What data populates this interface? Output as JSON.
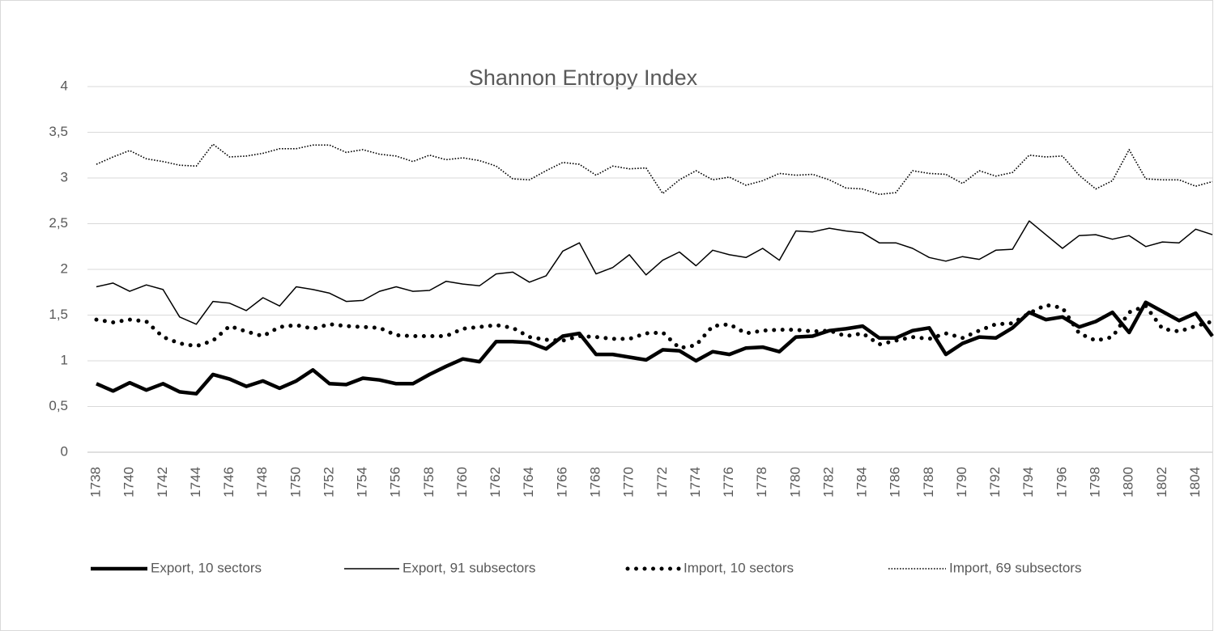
{
  "chart_data": {
    "type": "line",
    "title": "Shannon Entropy Index",
    "categories": [
      1738,
      null,
      1740,
      null,
      1742,
      null,
      1744,
      null,
      1746,
      null,
      1748,
      null,
      1750,
      null,
      1752,
      null,
      1754,
      null,
      1756,
      null,
      1758,
      null,
      1760,
      null,
      1762,
      null,
      1764,
      null,
      1766,
      null,
      1768,
      null,
      1770,
      null,
      1772,
      null,
      1774,
      null,
      1776,
      null,
      1778,
      null,
      1780,
      null,
      1782,
      null,
      1784,
      null,
      1786,
      null,
      1788,
      null,
      1790,
      null,
      1792,
      null,
      1794,
      null,
      1796,
      null,
      1798,
      null,
      1800,
      null,
      1802,
      null,
      1804,
      null
    ],
    "series": [
      {
        "name": "Export, 10 sectors",
        "color": "#000000",
        "width": 4.5,
        "dash": "solid",
        "values": [
          0.75,
          0.67,
          0.76,
          0.68,
          0.75,
          0.66,
          0.64,
          0.85,
          0.8,
          0.72,
          0.78,
          0.7,
          0.78,
          0.9,
          0.75,
          0.74,
          0.81,
          0.79,
          0.75,
          0.75,
          0.85,
          0.94,
          1.02,
          0.99,
          1.21,
          1.21,
          1.2,
          1.13,
          1.27,
          1.3,
          1.07,
          1.07,
          1.04,
          1.01,
          1.12,
          1.11,
          1.0,
          1.1,
          1.07,
          1.14,
          1.15,
          1.1,
          1.26,
          1.27,
          1.33,
          1.35,
          1.38,
          1.25,
          1.25,
          1.33,
          1.36,
          1.07,
          1.19,
          1.26,
          1.25,
          1.36,
          1.53,
          1.45,
          1.48,
          1.37,
          1.43,
          1.53,
          1.31,
          1.64,
          1.54,
          1.44,
          1.52,
          1.27
        ]
      },
      {
        "name": "Export, 91 subsectors",
        "color": "#000000",
        "width": 1.5,
        "dash": "solid",
        "values": [
          1.81,
          1.85,
          1.76,
          1.83,
          1.78,
          1.48,
          1.4,
          1.65,
          1.63,
          1.55,
          1.69,
          1.6,
          1.81,
          1.78,
          1.74,
          1.65,
          1.66,
          1.76,
          1.81,
          1.76,
          1.77,
          1.87,
          1.84,
          1.82,
          1.95,
          1.97,
          1.86,
          1.93,
          2.2,
          2.29,
          1.95,
          2.02,
          2.16,
          1.94,
          2.1,
          2.19,
          2.04,
          2.21,
          2.16,
          2.13,
          2.23,
          2.1,
          2.42,
          2.41,
          2.45,
          2.42,
          2.4,
          2.29,
          2.29,
          2.23,
          2.13,
          2.09,
          2.14,
          2.11,
          2.21,
          2.22,
          2.53,
          2.38,
          2.23,
          2.37,
          2.38,
          2.33,
          2.37,
          2.25,
          2.3,
          2.29,
          2.44,
          2.38
        ]
      },
      {
        "name": "Import, 10 sectors",
        "color": "#000000",
        "width": 5,
        "dash": "dots",
        "values": [
          1.45,
          1.42,
          1.45,
          1.43,
          1.26,
          1.19,
          1.16,
          1.22,
          1.38,
          1.32,
          1.27,
          1.37,
          1.39,
          1.35,
          1.4,
          1.38,
          1.37,
          1.36,
          1.28,
          1.27,
          1.27,
          1.27,
          1.35,
          1.37,
          1.39,
          1.36,
          1.26,
          1.23,
          1.22,
          1.27,
          1.26,
          1.24,
          1.24,
          1.3,
          1.31,
          1.14,
          1.17,
          1.38,
          1.4,
          1.3,
          1.33,
          1.34,
          1.34,
          1.32,
          1.33,
          1.27,
          1.3,
          1.18,
          1.22,
          1.26,
          1.24,
          1.3,
          1.25,
          1.33,
          1.4,
          1.41,
          1.52,
          1.61,
          1.58,
          1.3,
          1.22,
          1.26,
          1.53,
          1.6,
          1.35,
          1.32,
          1.38,
          1.43
        ]
      },
      {
        "name": "Import, 69 subsectors",
        "color": "#000000",
        "width": 1.6,
        "dash": "fine-dots",
        "values": [
          3.15,
          3.23,
          3.3,
          3.21,
          3.18,
          3.14,
          3.13,
          3.37,
          3.23,
          3.24,
          3.27,
          3.32,
          3.32,
          3.36,
          3.36,
          3.28,
          3.31,
          3.26,
          3.24,
          3.18,
          3.25,
          3.2,
          3.22,
          3.19,
          3.13,
          2.99,
          2.98,
          3.08,
          3.17,
          3.15,
          3.03,
          3.13,
          3.1,
          3.11,
          2.83,
          2.98,
          3.08,
          2.98,
          3.01,
          2.92,
          2.97,
          3.05,
          3.03,
          3.04,
          2.98,
          2.89,
          2.88,
          2.82,
          2.84,
          3.08,
          3.05,
          3.04,
          2.94,
          3.08,
          3.02,
          3.06,
          3.25,
          3.23,
          3.24,
          3.03,
          2.88,
          2.97,
          3.31,
          2.99,
          2.98,
          2.98,
          2.91,
          2.96
        ]
      }
    ],
    "ylim": [
      0,
      4
    ],
    "yticks": [
      0,
      {
        "value": 0.5,
        "label": "0,5"
      },
      1,
      {
        "value": 1.5,
        "label": "1,5"
      },
      2,
      {
        "value": 2.5,
        "label": "2,5"
      },
      3,
      {
        "value": 3.5,
        "label": "3,5"
      },
      4
    ],
    "grid": true,
    "legend": "bottom"
  }
}
